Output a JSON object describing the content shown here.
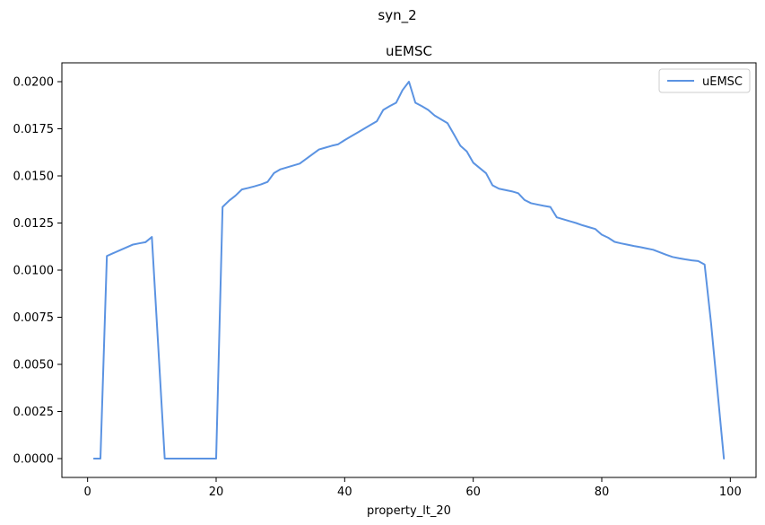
{
  "suptitle": "syn_2",
  "chart_data": {
    "type": "line",
    "title": "uEMSC",
    "xlabel": "property_lt_20",
    "ylabel": "",
    "xlim": [
      -4,
      104
    ],
    "ylim": [
      -0.001,
      0.021
    ],
    "xticks": [
      0,
      20,
      40,
      60,
      80,
      100
    ],
    "xtick_labels": [
      "0",
      "20",
      "40",
      "60",
      "80",
      "100"
    ],
    "yticks": [
      0,
      0.0025,
      0.005,
      0.0075,
      0.01,
      0.0125,
      0.015,
      0.0175,
      0.02
    ],
    "ytick_labels": [
      "0.0000",
      "0.0025",
      "0.0050",
      "0.0075",
      "0.0100",
      "0.0125",
      "0.0150",
      "0.0175",
      "0.0200"
    ],
    "grid": false,
    "legend_position": "top-right",
    "series": [
      {
        "name": "uEMSC",
        "color": "#5b93e2",
        "x": [
          1,
          2,
          3,
          4,
          5,
          6,
          7,
          8,
          9,
          10,
          11,
          12,
          13,
          14,
          15,
          16,
          17,
          18,
          19,
          20,
          21,
          22,
          23,
          24,
          25,
          26,
          27,
          28,
          29,
          30,
          31,
          32,
          33,
          34,
          35,
          36,
          37,
          38,
          39,
          40,
          41,
          42,
          43,
          44,
          45,
          46,
          47,
          48,
          49,
          50,
          51,
          52,
          53,
          54,
          55,
          56,
          57,
          58,
          59,
          60,
          61,
          62,
          63,
          64,
          65,
          66,
          67,
          68,
          69,
          70,
          71,
          72,
          73,
          74,
          75,
          76,
          77,
          78,
          79,
          80,
          81,
          82,
          83,
          84,
          85,
          86,
          87,
          88,
          89,
          90,
          91,
          92,
          93,
          94,
          95,
          96,
          97,
          98,
          99
        ],
        "y": [
          0.0,
          0.0,
          0.01075,
          0.0109,
          0.01105,
          0.0112,
          0.01135,
          0.01142,
          0.01148,
          0.01176,
          0.0059,
          0.0,
          0.0,
          0.0,
          0.0,
          0.0,
          0.0,
          0.0,
          0.0,
          0.0,
          0.01335,
          0.01368,
          0.01395,
          0.01428,
          0.01436,
          0.01445,
          0.01455,
          0.01468,
          0.01515,
          0.01535,
          0.01545,
          0.01555,
          0.01565,
          0.0159,
          0.01615,
          0.0164,
          0.0165,
          0.0166,
          0.01668,
          0.0169,
          0.0171,
          0.0173,
          0.0175,
          0.0177,
          0.0179,
          0.0185,
          0.0187,
          0.01888,
          0.01955,
          0.02,
          0.01888,
          0.0187,
          0.0185,
          0.0182,
          0.018,
          0.0178,
          0.0172,
          0.0166,
          0.0163,
          0.0157,
          0.01542,
          0.01514,
          0.0145,
          0.01432,
          0.01425,
          0.01418,
          0.01408,
          0.01372,
          0.01355,
          0.01348,
          0.01341,
          0.01335,
          0.0128,
          0.0127,
          0.0126,
          0.0125,
          0.01238,
          0.01228,
          0.01218,
          0.01188,
          0.01172,
          0.0115,
          0.01142,
          0.01135,
          0.01128,
          0.01122,
          0.01115,
          0.01108,
          0.01095,
          0.01082,
          0.0107,
          0.01063,
          0.01057,
          0.01052,
          0.01048,
          0.0103,
          0.0072,
          0.0036,
          0.0
        ]
      }
    ]
  }
}
